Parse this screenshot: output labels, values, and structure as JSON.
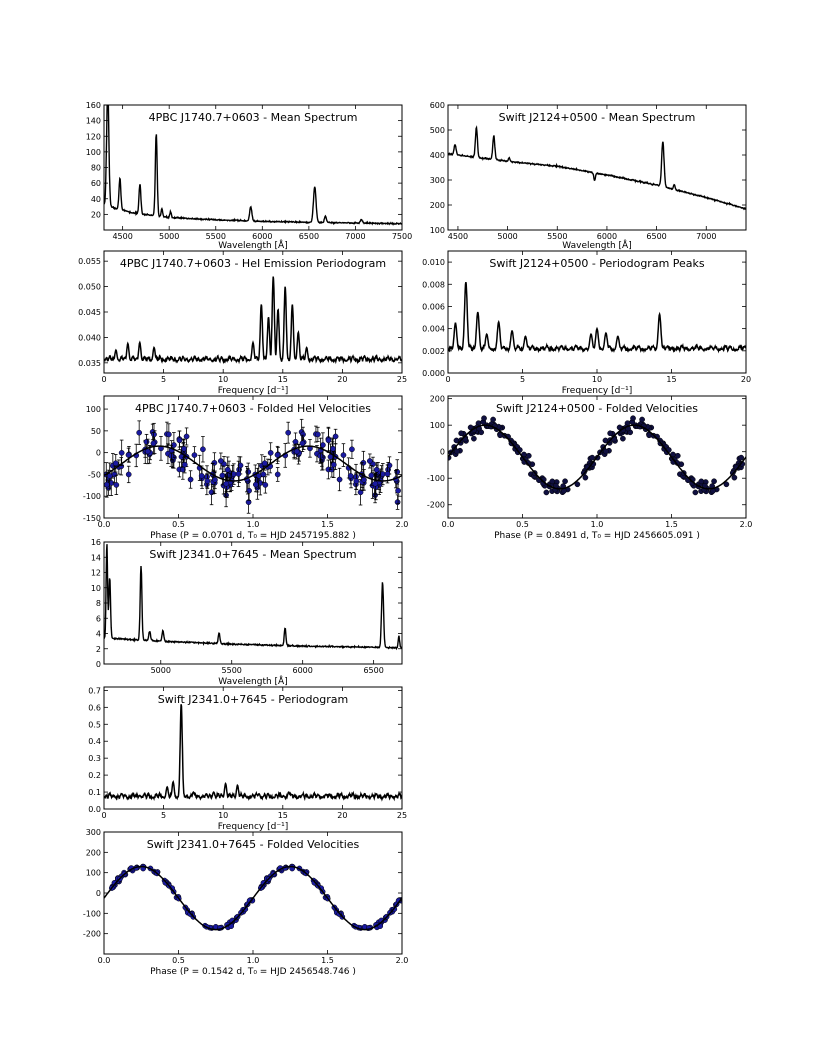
{
  "figure": {
    "source_hint": "six-panel grid of spectra, periodograms and folded radial velocity curves"
  },
  "chart_data": [
    {
      "id": "p1",
      "type": "line",
      "title": "4PBC J1740.7+0603 - Mean Spectrum",
      "xlabel": "Wavelength [Å]",
      "ylabel": "",
      "xlim": [
        4300,
        7500
      ],
      "ylim": [
        0,
        160
      ],
      "xticks": [
        4500,
        5000,
        5500,
        6000,
        6500,
        7000,
        7500
      ],
      "yticks": [
        20,
        40,
        60,
        80,
        100,
        120,
        140,
        160
      ],
      "continuum": [
        [
          4300,
          32
        ],
        [
          4600,
          22
        ],
        [
          5000,
          16
        ],
        [
          5500,
          13
        ],
        [
          6000,
          11
        ],
        [
          6500,
          10
        ],
        [
          7000,
          9
        ],
        [
          7500,
          8
        ]
      ],
      "lines": [
        [
          4340,
          150,
          12
        ],
        [
          4471,
          40,
          10
        ],
        [
          4686,
          38,
          10
        ],
        [
          4861,
          105,
          10
        ],
        [
          4922,
          10,
          8
        ],
        [
          5015,
          8,
          8
        ],
        [
          5876,
          18,
          12
        ],
        [
          6563,
          45,
          14
        ],
        [
          6678,
          8,
          10
        ],
        [
          7065,
          5,
          10
        ]
      ],
      "color": "#000000"
    },
    {
      "id": "p2",
      "type": "line",
      "title": "Swift J2124+0500 - Mean Spectrum",
      "xlabel": "Wavelength [Å]",
      "ylabel": "",
      "xlim": [
        4400,
        7400
      ],
      "ylim": [
        100,
        600
      ],
      "xticks": [
        4500,
        5000,
        5500,
        6000,
        6500,
        7000
      ],
      "yticks": [
        100,
        200,
        300,
        400,
        500,
        600
      ],
      "continuum": [
        [
          4400,
          405
        ],
        [
          5000,
          375
        ],
        [
          5500,
          355
        ],
        [
          6000,
          320
        ],
        [
          6500,
          280
        ],
        [
          7000,
          230
        ],
        [
          7400,
          185
        ]
      ],
      "lines": [
        [
          4340,
          30,
          15
        ],
        [
          4471,
          40,
          10
        ],
        [
          4686,
          120,
          10
        ],
        [
          4861,
          95,
          10
        ],
        [
          5015,
          15,
          8
        ],
        [
          5876,
          -30,
          8
        ],
        [
          6563,
          180,
          12
        ],
        [
          6678,
          18,
          8
        ]
      ],
      "color": "#000000"
    },
    {
      "id": "p3",
      "type": "line",
      "title": "4PBC J1740.7+0603 - HeI Emission Periodogram",
      "xlabel": "Frequency [d⁻¹]",
      "ylabel": "",
      "xlim": [
        0,
        25
      ],
      "ylim": [
        0.033,
        0.057
      ],
      "xticks": [
        0,
        5,
        10,
        15,
        20,
        25
      ],
      "yticks": [
        0.035,
        0.04,
        0.045,
        0.05,
        0.055
      ],
      "base": 0.0352,
      "peaks": [
        [
          1.0,
          0.0375
        ],
        [
          2.0,
          0.0388
        ],
        [
          3.0,
          0.039
        ],
        [
          4.2,
          0.038
        ],
        [
          12.5,
          0.039
        ],
        [
          13.2,
          0.0465
        ],
        [
          13.8,
          0.044
        ],
        [
          14.2,
          0.052
        ],
        [
          14.6,
          0.0455
        ],
        [
          15.2,
          0.05
        ],
        [
          15.8,
          0.0465
        ],
        [
          16.3,
          0.041
        ],
        [
          17.0,
          0.038
        ]
      ],
      "color": "#000000"
    },
    {
      "id": "p4",
      "type": "line",
      "title": "Swift J2124+0500 - Periodogram Peaks",
      "xlabel": "Frequency [d⁻¹]",
      "ylabel": "",
      "xlim": [
        0,
        20
      ],
      "ylim": [
        0,
        0.011
      ],
      "xticks": [
        0,
        5,
        10,
        15,
        20
      ],
      "yticks": [
        0.0,
        0.002,
        0.004,
        0.006,
        0.008,
        0.01
      ],
      "peaks": [
        [
          0.5,
          0.0045
        ],
        [
          1.2,
          0.0082
        ],
        [
          2.0,
          0.0055
        ],
        [
          2.6,
          0.0035
        ],
        [
          3.4,
          0.0046
        ],
        [
          4.3,
          0.0038
        ],
        [
          5.2,
          0.0033
        ],
        [
          9.6,
          0.0035
        ],
        [
          10.0,
          0.004
        ],
        [
          10.6,
          0.0036
        ],
        [
          11.4,
          0.0033
        ],
        [
          14.2,
          0.0053
        ]
      ],
      "color": "#000000"
    },
    {
      "id": "p5",
      "type": "scatter",
      "title": "4PBC J1740.7+0603 - Folded HeI Velocities",
      "xlabel": "Phase (P =  0.0701 d,  T₀ = HJD 2457195.882 )",
      "ylabel": "",
      "xlim": [
        0,
        2
      ],
      "ylim": [
        -150,
        130
      ],
      "xticks": [
        0,
        0.5,
        1.0,
        1.5,
        2.0
      ],
      "yticks": [
        -150,
        -100,
        -50,
        0,
        50,
        100
      ],
      "curve": {
        "gamma": -25,
        "K": 40,
        "phi0": 0.12
      },
      "scatter": 50,
      "npoints": 90,
      "errorbars": true,
      "marker_color": "#1a1aa0",
      "curve_color": "#000000"
    },
    {
      "id": "p6",
      "type": "scatter",
      "title": "Swift J2124+0500 - Folded Velocities",
      "xlabel": "Phase (P =  0.8491 d,  T₀ = HJD 2456605.091 )",
      "ylabel": "",
      "xlim": [
        0,
        2
      ],
      "ylim": [
        -250,
        210
      ],
      "xticks": [
        0,
        0.5,
        1.0,
        1.5,
        2.0
      ],
      "yticks": [
        -200,
        -100,
        0,
        100,
        200
      ],
      "curve": {
        "gamma": -20,
        "K": 120,
        "phi0": 0.0
      },
      "scatter": 30,
      "npoints": 110,
      "errorbars": false,
      "marker_color": "#101040",
      "curve_color": "#000000"
    },
    {
      "id": "p7",
      "type": "line",
      "title": "Swift J2341.0+7645 - Mean Spectrum",
      "xlabel": "Wavelength [Å]",
      "ylabel": "",
      "xlim": [
        4600,
        6700
      ],
      "ylim": [
        0,
        16
      ],
      "xticks": [
        5000,
        5500,
        6000,
        6500
      ],
      "yticks": [
        0,
        2,
        4,
        6,
        8,
        10,
        12,
        14,
        16
      ],
      "continuum": [
        [
          4600,
          3.4
        ],
        [
          5000,
          3.0
        ],
        [
          5500,
          2.6
        ],
        [
          6000,
          2.35
        ],
        [
          6500,
          2.2
        ],
        [
          6700,
          2.1
        ]
      ],
      "lines": [
        [
          4620,
          12.5,
          5
        ],
        [
          4640,
          8,
          6
        ],
        [
          4861,
          9.8,
          6
        ],
        [
          4922,
          1.2,
          6
        ],
        [
          5015,
          1.4,
          6
        ],
        [
          5411,
          1.4,
          6
        ],
        [
          5876,
          2.3,
          6
        ],
        [
          6563,
          8.5,
          7
        ],
        [
          6678,
          1.5,
          5
        ]
      ],
      "color": "#000000"
    },
    {
      "id": "p8",
      "type": "line",
      "title": "Swift J2341.0+7645 - Periodogram",
      "xlabel": "Frequency [d⁻¹]",
      "ylabel": "",
      "xlim": [
        0,
        25
      ],
      "ylim": [
        0,
        0.72
      ],
      "xticks": [
        0,
        5,
        10,
        15,
        20,
        25
      ],
      "yticks": [
        0.0,
        0.1,
        0.2,
        0.3,
        0.4,
        0.5,
        0.6,
        0.7
      ],
      "base": 0.06,
      "peaks": [
        [
          1.5,
          0.09
        ],
        [
          3.0,
          0.08
        ],
        [
          5.3,
          0.13
        ],
        [
          5.8,
          0.16
        ],
        [
          6.48,
          0.62
        ],
        [
          7.5,
          0.1
        ],
        [
          9.2,
          0.1
        ],
        [
          10.2,
          0.15
        ],
        [
          11.2,
          0.14
        ],
        [
          13.0,
          0.09
        ],
        [
          15.5,
          0.1
        ]
      ],
      "color": "#000000"
    },
    {
      "id": "p9",
      "type": "scatter",
      "title": "Swift J2341.0+7645 - Folded Velocities",
      "xlabel": "Phase (P =  0.1542 d,  T₀ = HJD 2456548.746 )",
      "ylabel": "",
      "xlim": [
        0,
        2
      ],
      "ylim": [
        -300,
        300
      ],
      "xticks": [
        0,
        0.5,
        1.0,
        1.5,
        2.0
      ],
      "yticks": [
        -200,
        -100,
        0,
        100,
        200,
        300
      ],
      "curve": {
        "gamma": -25,
        "K": 155,
        "phi0": 0.0
      },
      "scatter": 14,
      "npoints": 80,
      "errorbars": true,
      "marker_color": "#1a1aa0",
      "curve_color": "#000000"
    }
  ]
}
